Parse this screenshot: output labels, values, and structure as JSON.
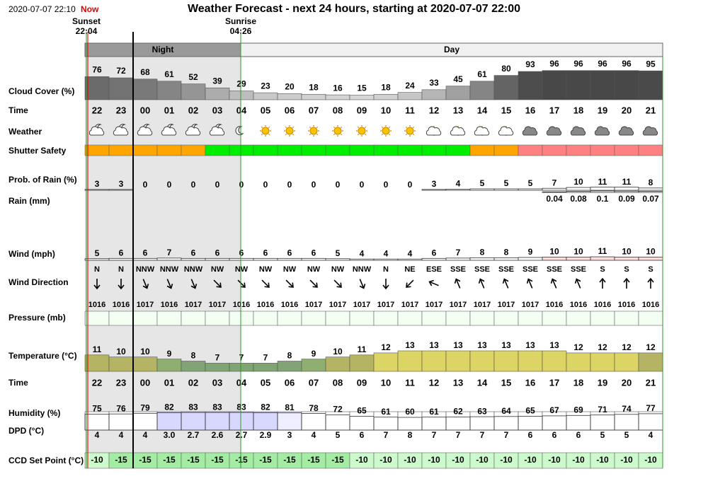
{
  "header": {
    "datetime": "2020-07-07 22:10",
    "now": "Now",
    "title": "Weather Forecast - next 24 hours, starting at 2020-07-07 22:00",
    "sunset": {
      "label": "Sunset",
      "time": "22:04"
    },
    "sunrise": {
      "label": "Sunrise",
      "time": "04:26"
    },
    "night": "Night",
    "day": "Day"
  },
  "row_labels": {
    "cloud_cover": "Cloud Cover (%)",
    "time": "Time",
    "weather": "Weather",
    "shutter_safety": "Shutter Safety",
    "rain_probability": "Prob. of Rain (%)",
    "rain": "Rain (mm)",
    "wind": "Wind (mph)",
    "wind_direction": "Wind Direction",
    "pressure": "Pressure (mb)",
    "temperature": "Temperature (°C)",
    "time_2": "Time",
    "humidity": "Humidity (%)",
    "dpd": "DPD (°C)",
    "ccd_set_point": "CCD Set Point (°C)"
  },
  "hours": [
    "22",
    "23",
    "00",
    "01",
    "02",
    "03",
    "04",
    "05",
    "06",
    "07",
    "08",
    "09",
    "10",
    "11",
    "12",
    "13",
    "14",
    "15",
    "16",
    "17",
    "18",
    "19",
    "20",
    "21"
  ],
  "cloud_cover": [
    76,
    72,
    68,
    61,
    52,
    39,
    29,
    23,
    20,
    18,
    16,
    15,
    18,
    24,
    33,
    45,
    61,
    80,
    93,
    96,
    96,
    96,
    96,
    95
  ],
  "weather_icons": [
    "partly-cloudy-night",
    "partly-cloudy-night",
    "partly-cloudy-night",
    "partly-cloudy-night",
    "partly-cloudy-night",
    "partly-cloudy-night",
    "clear-night",
    "clear-day",
    "clear-day",
    "clear-day",
    "clear-day",
    "clear-day",
    "clear-day",
    "clear-day",
    "partly-cloudy-day",
    "partly-cloudy-day",
    "partly-cloudy-day",
    "partly-cloudy-day",
    "cloudy",
    "cloudy",
    "cloudy",
    "cloudy",
    "cloudy",
    "cloudy"
  ],
  "shutter_safety": [
    "#ffa500",
    "#ffa500",
    "#ffa500",
    "#ffa500",
    "#ffa500",
    "#00ee00",
    "#00ee00",
    "#00ee00",
    "#00ee00",
    "#00ee00",
    "#00ee00",
    "#00ee00",
    "#00ee00",
    "#00ee00",
    "#00ee00",
    "#00ee00",
    "#ffa500",
    "#ffa500",
    "#ff8080",
    "#ff8080",
    "#ff8080",
    "#ff8080",
    "#ff8080",
    "#ff8080"
  ],
  "rain_probability": [
    3,
    3,
    0,
    0,
    0,
    0,
    0,
    0,
    0,
    0,
    0,
    0,
    0,
    0,
    3,
    4,
    5,
    5,
    5,
    7,
    10,
    11,
    11,
    8
  ],
  "rain": [
    null,
    null,
    null,
    null,
    null,
    null,
    null,
    null,
    null,
    null,
    null,
    null,
    null,
    null,
    null,
    null,
    null,
    null,
    null,
    0.04,
    0.08,
    0.1,
    0.09,
    0.07
  ],
  "wind": [
    5,
    6,
    6,
    7,
    6,
    6,
    6,
    6,
    6,
    6,
    5,
    4,
    4,
    4,
    6,
    7,
    8,
    8,
    9,
    10,
    10,
    11,
    10,
    10
  ],
  "wind_direction": [
    "N",
    "N",
    "NNW",
    "NNW",
    "NNW",
    "NW",
    "NW",
    "NW",
    "NW",
    "NW",
    "NW",
    "NNW",
    "N",
    "NE",
    "ESE",
    "SSE",
    "SSE",
    "SSE",
    "SSE",
    "SSE",
    "SSE",
    "S",
    "S",
    "S"
  ],
  "pressure": [
    1016,
    1016,
    1017,
    1016,
    1017,
    1017,
    1016,
    1016,
    1016,
    1017,
    1017,
    1017,
    1017,
    1017,
    1017,
    1017,
    1017,
    1017,
    1017,
    1016,
    1016,
    1016,
    1016,
    1016
  ],
  "temperature": [
    11,
    10,
    10,
    9,
    8,
    7,
    7,
    7,
    8,
    9,
    10,
    11,
    12,
    13,
    13,
    13,
    13,
    13,
    13,
    13,
    12,
    12,
    12,
    12
  ],
  "temperature_colors": [
    "#b4b464",
    "#b4b464",
    "#b4b464",
    "#8eae72",
    "#80a474",
    "#80a474",
    "#80a474",
    "#80a474",
    "#80a474",
    "#8eae72",
    "#b4b464",
    "#b4b464",
    "#dcd464",
    "#dcd464",
    "#dcd464",
    "#dcd464",
    "#dcd464",
    "#dcd464",
    "#dcd464",
    "#dcd464",
    "#dcd464",
    "#dcd464",
    "#dcd464",
    "#b4b464"
  ],
  "humidity": [
    75,
    76,
    79,
    82,
    83,
    83,
    83,
    82,
    81,
    78,
    72,
    65,
    61,
    60,
    61,
    62,
    63,
    64,
    65,
    67,
    69,
    71,
    74,
    77
  ],
  "humidity_colors": [
    "#ffffff",
    "#ffffff",
    "#ffffff",
    "#d8d8ff",
    "#d8d8ff",
    "#d8d8ff",
    "#d8d8ff",
    "#d8d8ff",
    "#eeeeff",
    "#ffffff",
    "#ffffff",
    "#ffffff",
    "#ffffff",
    "#ffffff",
    "#ffffff",
    "#ffffff",
    "#ffffff",
    "#ffffff",
    "#ffffff",
    "#ffffff",
    "#ffffff",
    "#ffffff",
    "#ffffff",
    "#ffffff"
  ],
  "dpd": {
    "values": [
      4,
      4,
      4,
      3.0,
      2.7,
      2.6,
      2.7,
      2.9,
      3,
      4,
      5,
      6,
      7,
      8,
      7,
      7,
      7,
      7,
      6,
      6,
      6,
      5,
      5,
      4
    ],
    "value_labels": [
      "4",
      "4",
      "4",
      "3.0",
      "2.7",
      "2.6",
      "2.7",
      "2.9",
      "3",
      "4",
      "5",
      "6",
      "7",
      "8",
      "7",
      "7",
      "7",
      "7",
      "6",
      "6",
      "6",
      "5",
      "5",
      "4"
    ]
  },
  "ccd_set_point": [
    -10,
    -15,
    -15,
    -15,
    -15,
    -15,
    -15,
    -15,
    -15,
    -15,
    -15,
    -10,
    -10,
    -10,
    -10,
    -10,
    -10,
    -10,
    -10,
    -10,
    -10,
    -10,
    -10,
    -10
  ]
}
